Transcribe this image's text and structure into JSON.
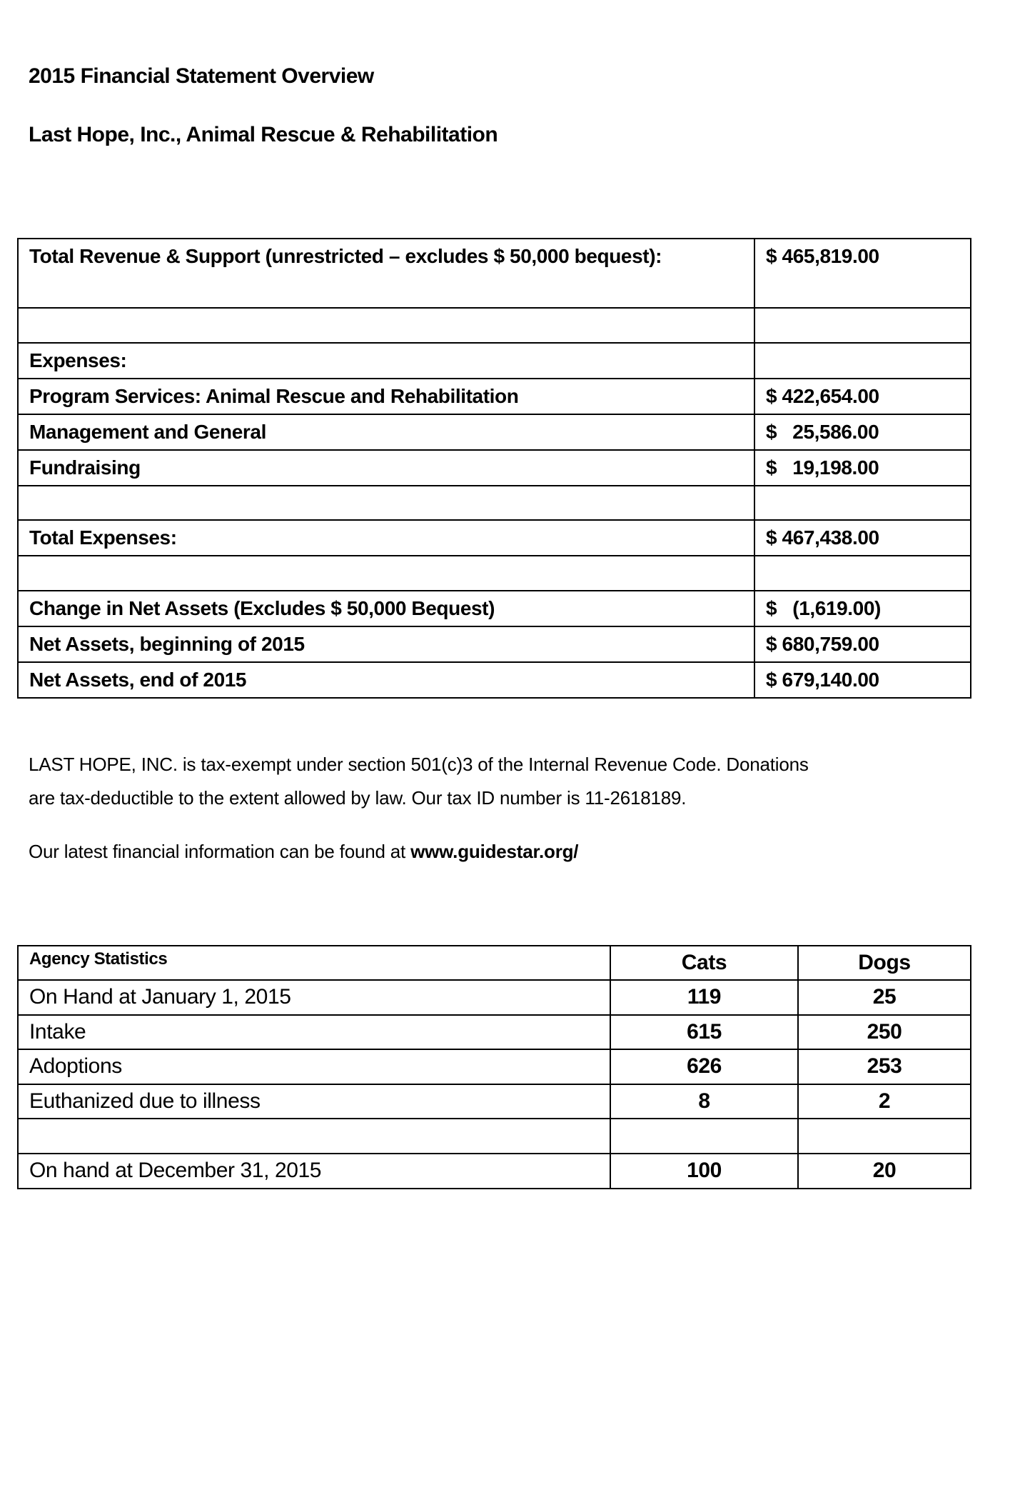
{
  "title": "2015 Financial Statement Overview",
  "subtitle": "Last Hope, Inc., Animal Rescue & Rehabilitation",
  "financials": [
    {
      "label": "Total Revenue & Support (unrestricted – excludes $ 50,000 bequest):",
      "value": "$ 465,819.00"
    },
    {
      "label": "",
      "value": ""
    },
    {
      "label": "Expenses:",
      "value": ""
    },
    {
      "label": "Program Services: Animal Rescue and Rehabilitation",
      "value": "$ 422,654.00"
    },
    {
      "label": "Management and General",
      "value": "$   25,586.00"
    },
    {
      "label": "Fundraising",
      "value": "$   19,198.00"
    },
    {
      "label": "",
      "value": ""
    },
    {
      "label": "Total Expenses:",
      "value": "$ 467,438.00"
    },
    {
      "label": "",
      "value": ""
    },
    {
      "label": "Change in Net Assets (Excludes $ 50,000 Bequest)",
      "value": "$   (1,619.00)"
    },
    {
      "label": "Net Assets, beginning of 2015",
      "value": "$ 680,759.00"
    },
    {
      "label": "Net Assets, end of 2015",
      "value": "$ 679,140.00"
    }
  ],
  "notes": {
    "line1": "LAST HOPE, INC.  is tax-exempt under section 501(c)3 of the Internal Revenue Code.  Donations",
    "line2": "are tax-deductible to the extent allowed by law.   Our tax ID number is 11-2618189.",
    "line3_prefix": "Our latest financial information can be found at ",
    "line3_link": "www.guidestar.org/"
  },
  "stats": {
    "headers": [
      "Agency Statistics",
      "Cats",
      "Dogs"
    ],
    "rows": [
      {
        "label": "On Hand at January 1, 2015",
        "cats": "119",
        "dogs": "25"
      },
      {
        "label": "Intake",
        "cats": "615",
        "dogs": "250"
      },
      {
        "label": "Adoptions",
        "cats": "626",
        "dogs": "253"
      },
      {
        "label": "Euthanized due to illness",
        "cats": "8",
        "dogs": "2"
      },
      {
        "label": "",
        "cats": "",
        "dogs": ""
      },
      {
        "label": "On hand at December 31, 2015",
        "cats": "100",
        "dogs": "20"
      }
    ]
  }
}
